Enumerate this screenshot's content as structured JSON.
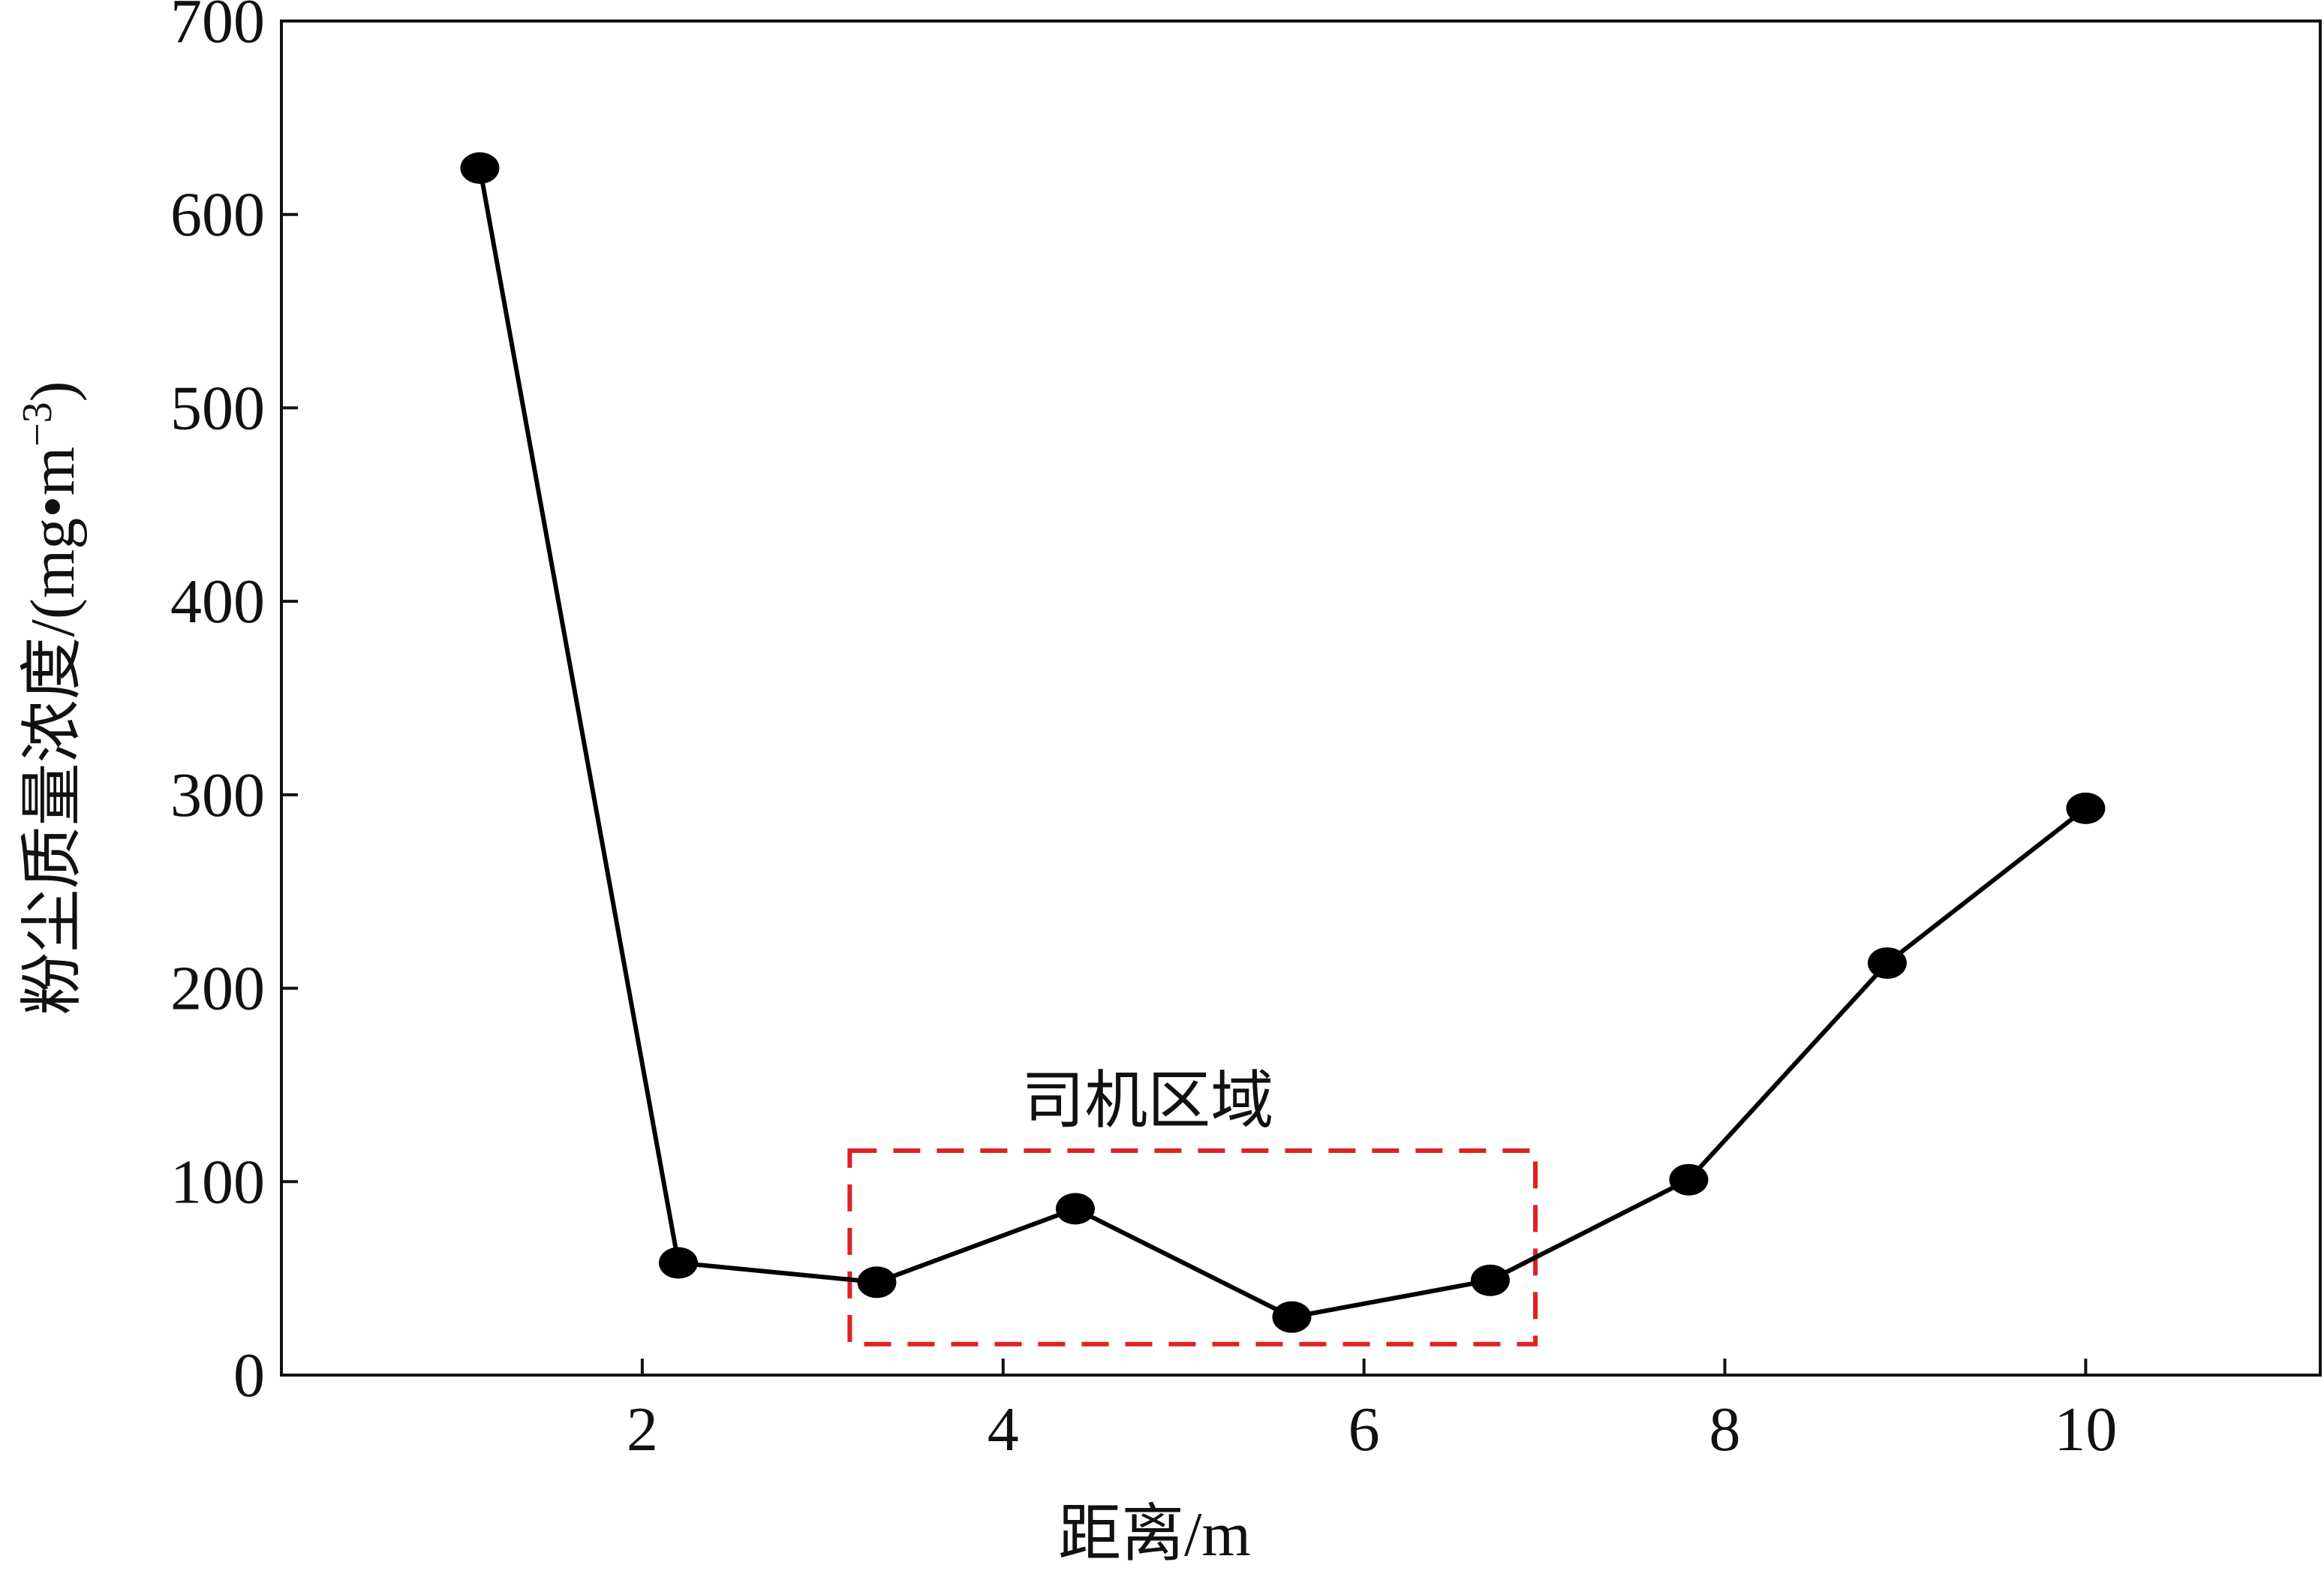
{
  "chart_data": {
    "type": "line",
    "title": "",
    "xlabel": "距离/m",
    "ylabel_main": "粉尘质量浓度/(mg•m",
    "ylabel_sup": "−3",
    "ylabel_close": ")",
    "xlim": [
      0,
      11.3
    ],
    "ylim": [
      0,
      700
    ],
    "xticks": [
      2,
      4,
      6,
      8,
      10
    ],
    "xtick_labels": [
      "2",
      "4",
      "6",
      "8",
      "10"
    ],
    "yticks": [
      0,
      100,
      200,
      300,
      400,
      500,
      600,
      700
    ],
    "ytick_labels": [
      "0",
      "100",
      "200",
      "300",
      "400",
      "500",
      "600",
      "700"
    ],
    "grid": false,
    "series": [
      {
        "x": [
          1.1,
          2.2,
          3.3,
          4.4,
          5.6,
          6.7,
          7.8,
          8.9,
          10.0
        ],
        "y": [
          624,
          58,
          48,
          86,
          30,
          49,
          101,
          213,
          293
        ],
        "color": "#000000",
        "marker": "filled-ellipse"
      }
    ],
    "annotations": [
      {
        "text": "司机区域",
        "type": "dashed-rectangle",
        "color": "#dd2222",
        "x_range": [
          3.15,
          6.95
        ],
        "y_range": [
          16,
          116
        ]
      }
    ]
  }
}
